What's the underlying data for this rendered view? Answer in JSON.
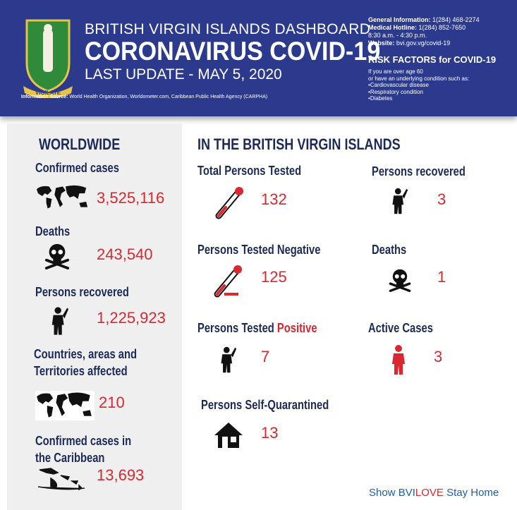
{
  "header": {
    "title": "BRITISH VIRGIN ISLANDS DASHBOARD",
    "subtitle": "CORONAVIRUS COVID-19",
    "update": "LAST UPDATE - MAY 5, 2020",
    "crest_motto": "VIGILATE",
    "source_label": "Information Source:",
    "source": "World Health Organization, Worldometer.com, Caribbean Public Health Agency (CARPHA)",
    "contacts": [
      {
        "label": "General Information:",
        "value": "1(284) 468-2274"
      },
      {
        "label": "Medical Hotline:",
        "value": "1(284) 852-7650"
      }
    ],
    "hours": "8:30 a.m. - 4:30 p.m.",
    "website": {
      "label": "Website:",
      "value": "bvi.gov.vg/covid-19"
    },
    "risk": {
      "title": "RISK FACTORS for COVID-19",
      "intro": [
        "If you are over age 60",
        "or have an underlying condition such as:"
      ],
      "items": [
        "Cardiovascular disease",
        "Respiratory condition",
        "Diabetes"
      ]
    }
  },
  "worldwide": {
    "title": "WORLDWIDE",
    "stats": [
      {
        "label": "Confirmed cases",
        "value": "3,525,116"
      },
      {
        "label": "Deaths",
        "value": "243,540"
      },
      {
        "label": "Persons recovered",
        "value": "1,225,923"
      },
      {
        "label": "Countries, areas and Territories affected",
        "value": "210"
      },
      {
        "label": "Confirmed cases in the Caribbean",
        "value": "13,693"
      }
    ]
  },
  "bvi": {
    "title": "IN THE BRITISH VIRGIN ISLANDS",
    "stats": [
      {
        "label": "Total Persons Tested",
        "value": "132"
      },
      {
        "label": "Persons recovered",
        "value": "3"
      },
      {
        "label": "Persons Tested Negative",
        "value": "125"
      },
      {
        "label": "Deaths",
        "value": "1"
      },
      {
        "label": [
          "Persons Tested ",
          "Positive"
        ],
        "value": "7"
      },
      {
        "label": "Active Cases",
        "value": "3"
      },
      {
        "label": "Persons Self-Quarantined",
        "value": "13"
      }
    ]
  },
  "footer": [
    "Show BVI",
    "LOVE",
    " Stay Home"
  ]
}
